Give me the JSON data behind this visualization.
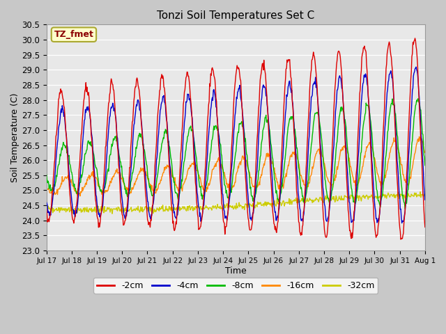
{
  "title": "Tonzi Soil Temperatures Set C",
  "xlabel": "Time",
  "ylabel": "Soil Temperature (C)",
  "ylim": [
    23.0,
    30.5
  ],
  "annotation": "TZ_fmet",
  "bg_color": "#e8e8e8",
  "legend": [
    "-2cm",
    "-4cm",
    "-8cm",
    "-16cm",
    "-32cm"
  ],
  "line_colors": [
    "#dd0000",
    "#0000cc",
    "#00bb00",
    "#ff8800",
    "#cccc00"
  ],
  "x_tick_labels": [
    "Jul 17",
    "Jul 18",
    "Jul 19",
    "Jul 20",
    "Jul 21",
    "Jul 22",
    "Jul 23",
    "Jul 24",
    "Jul 25",
    "Jul 26",
    "Jul 27",
    "Jul 28",
    "Jul 29",
    "Jul 30",
    "Jul 31",
    "Aug 1"
  ],
  "n_points": 720
}
